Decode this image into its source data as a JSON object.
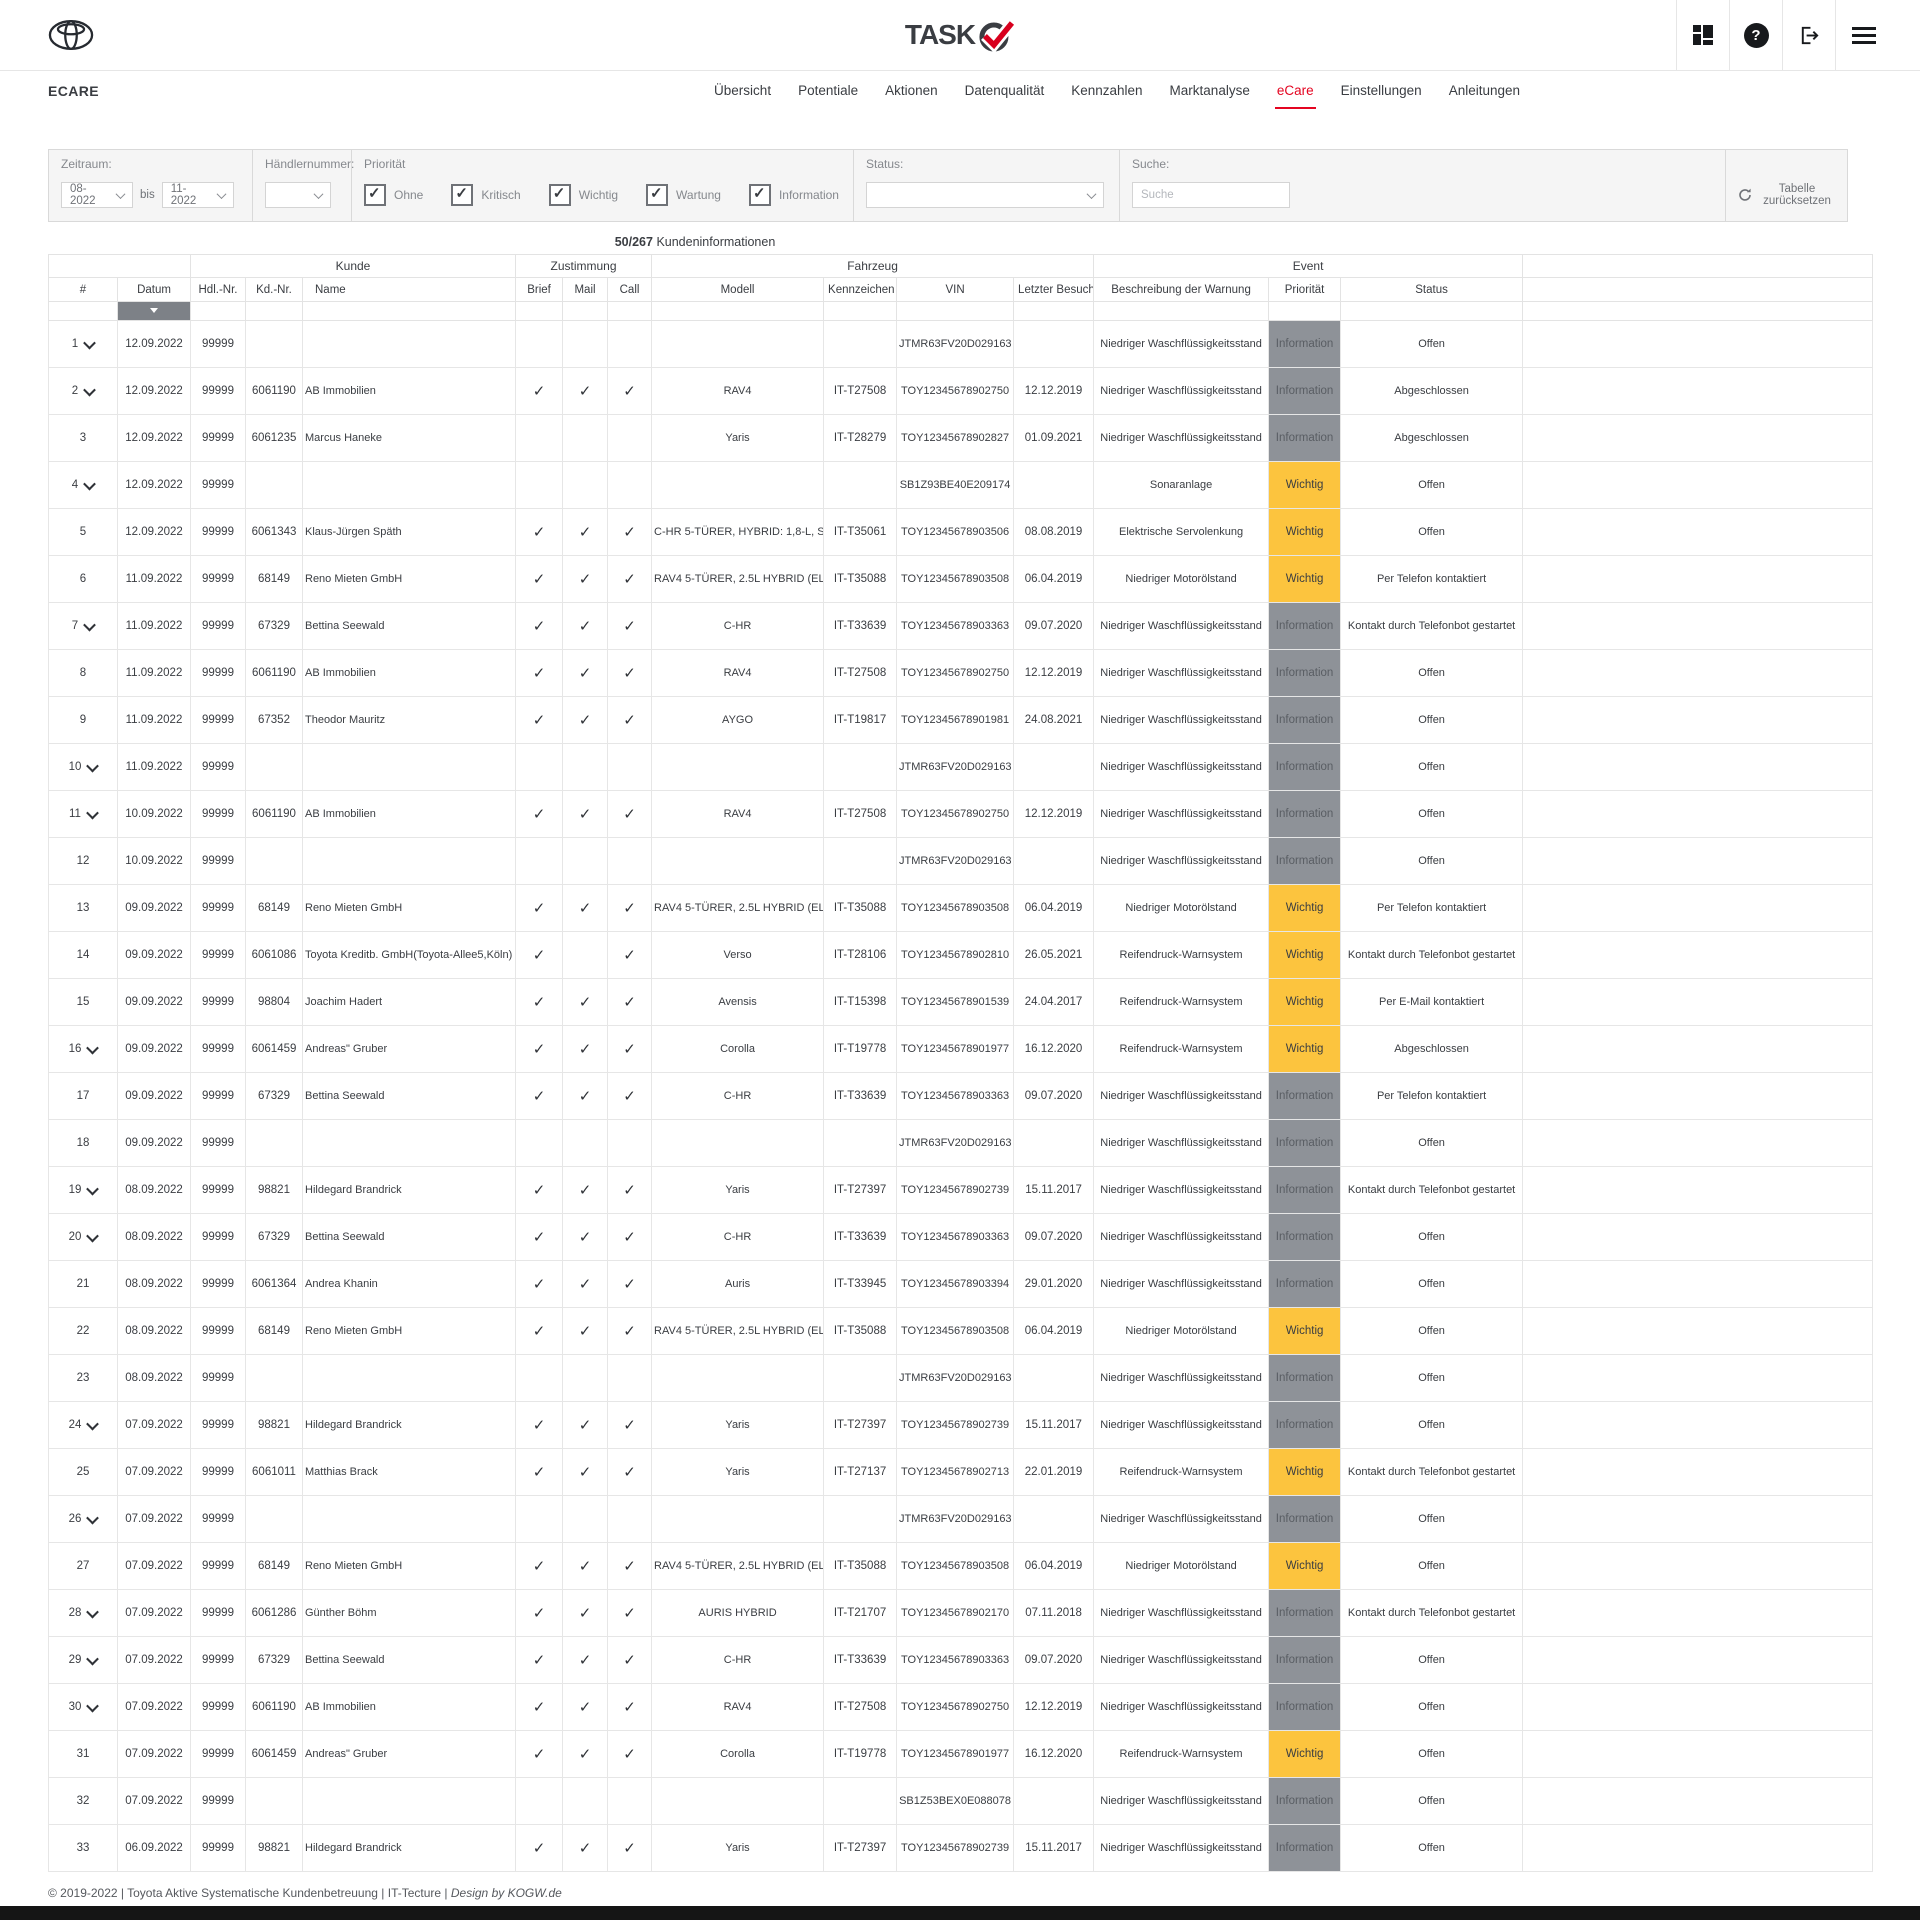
{
  "header": {
    "brand": "TASK",
    "icons": {
      "help_glyph": "?"
    }
  },
  "nav": {
    "app_label": "ECARE",
    "items": [
      "Übersicht",
      "Potentiale",
      "Aktionen",
      "Datenqualität",
      "Kennzahlen",
      "Marktanalyse",
      "eCare",
      "Einstellungen",
      "Anleitungen"
    ],
    "active": "eCare"
  },
  "filters": {
    "zeitraum": {
      "label": "Zeitraum:",
      "from": "08-2022",
      "bis_label": "bis",
      "to": "11-2022"
    },
    "haendler": {
      "label": "Händlernummer:",
      "value": ""
    },
    "prioritaet": {
      "label": "Priorität",
      "options": [
        {
          "label": "Ohne",
          "checked": true
        },
        {
          "label": "Kritisch",
          "checked": true
        },
        {
          "label": "Wichtig",
          "checked": true
        },
        {
          "label": "Wartung",
          "checked": true
        },
        {
          "label": "Information",
          "checked": true
        }
      ]
    },
    "status": {
      "label": "Status:",
      "value": ""
    },
    "suche": {
      "label": "Suche:",
      "placeholder": "Suche",
      "value": ""
    },
    "reset_label": "Tabelle zurücksetzen"
  },
  "summary": {
    "count": "50/267",
    "label": "Kundeninformationen"
  },
  "table": {
    "groups": [
      {
        "label": "",
        "span": 2
      },
      {
        "label": "Kunde",
        "span": 3
      },
      {
        "label": "Zustimmung",
        "span": 3
      },
      {
        "label": "Fahrzeug",
        "span": 4
      },
      {
        "label": "Event",
        "span": 3
      },
      {
        "label": "",
        "span": 1
      }
    ],
    "columns": [
      "#",
      "Datum",
      "Hdl.-Nr.",
      "Kd.-Nr.",
      "Name",
      "Brief",
      "Mail",
      "Call",
      "Modell",
      "Kennzeichen",
      "VIN",
      "Letzter Besuch",
      "Beschreibung der Warnung",
      "Priorität",
      "Status",
      ""
    ],
    "sorted_column": "Datum",
    "check_glyph": "✓",
    "rows": [
      {
        "n": 1,
        "exp": true,
        "datum": "12.09.2022",
        "hdl": "99999",
        "kd": "",
        "name": "",
        "brief": false,
        "mail": false,
        "call": false,
        "modell": "",
        "kz": "",
        "vin": "JTMR63FV20D029163",
        "besuch": "",
        "warnung": "Niedriger Waschflüssigkeitsstand",
        "prio": "Information",
        "status": "Offen"
      },
      {
        "n": 2,
        "exp": true,
        "datum": "12.09.2022",
        "hdl": "99999",
        "kd": "6061190",
        "name": "AB Immobilien",
        "brief": true,
        "mail": true,
        "call": true,
        "modell": "RAV4",
        "kz": "IT-T27508",
        "vin": "TOY12345678902750",
        "besuch": "12.12.2019",
        "warnung": "Niedriger Waschflüssigkeitsstand",
        "prio": "Information",
        "status": "Abgeschlossen"
      },
      {
        "n": 3,
        "exp": false,
        "datum": "12.09.2022",
        "hdl": "99999",
        "kd": "6061235",
        "name": "Marcus Haneke",
        "brief": false,
        "mail": false,
        "call": false,
        "modell": "Yaris",
        "kz": "IT-T28279",
        "vin": "TOY12345678902827",
        "besuch": "01.09.2021",
        "warnung": "Niedriger Waschflüssigkeitsstand",
        "prio": "Information",
        "status": "Abgeschlossen"
      },
      {
        "n": 4,
        "exp": true,
        "datum": "12.09.2022",
        "hdl": "99999",
        "kd": "",
        "name": "",
        "brief": false,
        "mail": false,
        "call": false,
        "modell": "",
        "kz": "",
        "vin": "SB1Z93BE40E209174",
        "besuch": "",
        "warnung": "Sonaranlage",
        "prio": "Wichtig",
        "status": "Offen"
      },
      {
        "n": 5,
        "exp": false,
        "datum": "12.09.2022",
        "hdl": "99999",
        "kd": "6061343",
        "name": "Klaus-Jürgen Späth",
        "brief": true,
        "mail": true,
        "call": true,
        "modell": "C-HR 5-TÜRER, HYBRID: 1,8-L, S",
        "kz": "IT-T35061",
        "vin": "TOY12345678903506",
        "besuch": "08.08.2019",
        "warnung": "Elektrische Servolenkung",
        "prio": "Wichtig",
        "status": "Offen"
      },
      {
        "n": 6,
        "exp": false,
        "datum": "11.09.2022",
        "hdl": "99999",
        "kd": "68149",
        "name": "Reno Mieten GmbH",
        "brief": true,
        "mail": true,
        "call": true,
        "modell": "RAV4 5-TÜRER, 2.5L HYBRID (ELE",
        "kz": "IT-T35088",
        "vin": "TOY12345678903508",
        "besuch": "06.04.2019",
        "warnung": "Niedriger Motorölstand",
        "prio": "Wichtig",
        "status": "Per Telefon kontaktiert"
      },
      {
        "n": 7,
        "exp": true,
        "datum": "11.09.2022",
        "hdl": "99999",
        "kd": "67329",
        "name": "Bettina Seewald",
        "brief": true,
        "mail": true,
        "call": true,
        "modell": "C-HR",
        "kz": "IT-T33639",
        "vin": "TOY12345678903363",
        "besuch": "09.07.2020",
        "warnung": "Niedriger Waschflüssigkeitsstand",
        "prio": "Information",
        "status": "Kontakt durch Telefonbot gestartet"
      },
      {
        "n": 8,
        "exp": false,
        "datum": "11.09.2022",
        "hdl": "99999",
        "kd": "6061190",
        "name": "AB Immobilien",
        "brief": true,
        "mail": true,
        "call": true,
        "modell": "RAV4",
        "kz": "IT-T27508",
        "vin": "TOY12345678902750",
        "besuch": "12.12.2019",
        "warnung": "Niedriger Waschflüssigkeitsstand",
        "prio": "Information",
        "status": "Offen"
      },
      {
        "n": 9,
        "exp": false,
        "datum": "11.09.2022",
        "hdl": "99999",
        "kd": "67352",
        "name": "Theodor Mauritz",
        "brief": true,
        "mail": true,
        "call": true,
        "modell": "AYGO",
        "kz": "IT-T19817",
        "vin": "TOY12345678901981",
        "besuch": "24.08.2021",
        "warnung": "Niedriger Waschflüssigkeitsstand",
        "prio": "Information",
        "status": "Offen"
      },
      {
        "n": 10,
        "exp": true,
        "datum": "11.09.2022",
        "hdl": "99999",
        "kd": "",
        "name": "",
        "brief": false,
        "mail": false,
        "call": false,
        "modell": "",
        "kz": "",
        "vin": "JTMR63FV20D029163",
        "besuch": "",
        "warnung": "Niedriger Waschflüssigkeitsstand",
        "prio": "Information",
        "status": "Offen"
      },
      {
        "n": 11,
        "exp": true,
        "datum": "10.09.2022",
        "hdl": "99999",
        "kd": "6061190",
        "name": "AB Immobilien",
        "brief": true,
        "mail": true,
        "call": true,
        "modell": "RAV4",
        "kz": "IT-T27508",
        "vin": "TOY12345678902750",
        "besuch": "12.12.2019",
        "warnung": "Niedriger Waschflüssigkeitsstand",
        "prio": "Information",
        "status": "Offen"
      },
      {
        "n": 12,
        "exp": false,
        "datum": "10.09.2022",
        "hdl": "99999",
        "kd": "",
        "name": "",
        "brief": false,
        "mail": false,
        "call": false,
        "modell": "",
        "kz": "",
        "vin": "JTMR63FV20D029163",
        "besuch": "",
        "warnung": "Niedriger Waschflüssigkeitsstand",
        "prio": "Information",
        "status": "Offen"
      },
      {
        "n": 13,
        "exp": false,
        "datum": "09.09.2022",
        "hdl": "99999",
        "kd": "68149",
        "name": "Reno Mieten GmbH",
        "brief": true,
        "mail": true,
        "call": true,
        "modell": "RAV4 5-TÜRER, 2.5L HYBRID (ELE",
        "kz": "IT-T35088",
        "vin": "TOY12345678903508",
        "besuch": "06.04.2019",
        "warnung": "Niedriger Motorölstand",
        "prio": "Wichtig",
        "status": "Per Telefon kontaktiert"
      },
      {
        "n": 14,
        "exp": false,
        "datum": "09.09.2022",
        "hdl": "99999",
        "kd": "6061086",
        "name": "Toyota Kreditb. GmbH(Toyota-Allee5,Köln)",
        "brief": true,
        "mail": false,
        "call": true,
        "modell": "Verso",
        "kz": "IT-T28106",
        "vin": "TOY12345678902810",
        "besuch": "26.05.2021",
        "warnung": "Reifendruck-Warnsystem",
        "prio": "Wichtig",
        "status": "Kontakt durch Telefonbot gestartet"
      },
      {
        "n": 15,
        "exp": false,
        "datum": "09.09.2022",
        "hdl": "99999",
        "kd": "98804",
        "name": "Joachim Hadert",
        "brief": true,
        "mail": true,
        "call": true,
        "modell": "Avensis",
        "kz": "IT-T15398",
        "vin": "TOY12345678901539",
        "besuch": "24.04.2017",
        "warnung": "Reifendruck-Warnsystem",
        "prio": "Wichtig",
        "status": "Per E-Mail kontaktiert"
      },
      {
        "n": 16,
        "exp": true,
        "datum": "09.09.2022",
        "hdl": "99999",
        "kd": "6061459",
        "name": "Andreas\" Gruber",
        "brief": true,
        "mail": true,
        "call": true,
        "modell": "Corolla",
        "kz": "IT-T19778",
        "vin": "TOY12345678901977",
        "besuch": "16.12.2020",
        "warnung": "Reifendruck-Warnsystem",
        "prio": "Wichtig",
        "status": "Abgeschlossen"
      },
      {
        "n": 17,
        "exp": false,
        "datum": "09.09.2022",
        "hdl": "99999",
        "kd": "67329",
        "name": "Bettina Seewald",
        "brief": true,
        "mail": true,
        "call": true,
        "modell": "C-HR",
        "kz": "IT-T33639",
        "vin": "TOY12345678903363",
        "besuch": "09.07.2020",
        "warnung": "Niedriger Waschflüssigkeitsstand",
        "prio": "Information",
        "status": "Per Telefon kontaktiert"
      },
      {
        "n": 18,
        "exp": false,
        "datum": "09.09.2022",
        "hdl": "99999",
        "kd": "",
        "name": "",
        "brief": false,
        "mail": false,
        "call": false,
        "modell": "",
        "kz": "",
        "vin": "JTMR63FV20D029163",
        "besuch": "",
        "warnung": "Niedriger Waschflüssigkeitsstand",
        "prio": "Information",
        "status": "Offen"
      },
      {
        "n": 19,
        "exp": true,
        "datum": "08.09.2022",
        "hdl": "99999",
        "kd": "98821",
        "name": "Hildegard Brandrick",
        "brief": true,
        "mail": true,
        "call": true,
        "modell": "Yaris",
        "kz": "IT-T27397",
        "vin": "TOY12345678902739",
        "besuch": "15.11.2017",
        "warnung": "Niedriger Waschflüssigkeitsstand",
        "prio": "Information",
        "status": "Kontakt durch Telefonbot gestartet"
      },
      {
        "n": 20,
        "exp": true,
        "datum": "08.09.2022",
        "hdl": "99999",
        "kd": "67329",
        "name": "Bettina Seewald",
        "brief": true,
        "mail": true,
        "call": true,
        "modell": "C-HR",
        "kz": "IT-T33639",
        "vin": "TOY12345678903363",
        "besuch": "09.07.2020",
        "warnung": "Niedriger Waschflüssigkeitsstand",
        "prio": "Information",
        "status": "Offen"
      },
      {
        "n": 21,
        "exp": false,
        "datum": "08.09.2022",
        "hdl": "99999",
        "kd": "6061364",
        "name": "Andrea Khanin",
        "brief": true,
        "mail": true,
        "call": true,
        "modell": "Auris",
        "kz": "IT-T33945",
        "vin": "TOY12345678903394",
        "besuch": "29.01.2020",
        "warnung": "Niedriger Waschflüssigkeitsstand",
        "prio": "Information",
        "status": "Offen"
      },
      {
        "n": 22,
        "exp": false,
        "datum": "08.09.2022",
        "hdl": "99999",
        "kd": "68149",
        "name": "Reno Mieten GmbH",
        "brief": true,
        "mail": true,
        "call": true,
        "modell": "RAV4 5-TÜRER, 2.5L HYBRID (ELE",
        "kz": "IT-T35088",
        "vin": "TOY12345678903508",
        "besuch": "06.04.2019",
        "warnung": "Niedriger Motorölstand",
        "prio": "Wichtig",
        "status": "Offen"
      },
      {
        "n": 23,
        "exp": false,
        "datum": "08.09.2022",
        "hdl": "99999",
        "kd": "",
        "name": "",
        "brief": false,
        "mail": false,
        "call": false,
        "modell": "",
        "kz": "",
        "vin": "JTMR63FV20D029163",
        "besuch": "",
        "warnung": "Niedriger Waschflüssigkeitsstand",
        "prio": "Information",
        "status": "Offen"
      },
      {
        "n": 24,
        "exp": true,
        "datum": "07.09.2022",
        "hdl": "99999",
        "kd": "98821",
        "name": "Hildegard Brandrick",
        "brief": true,
        "mail": true,
        "call": true,
        "modell": "Yaris",
        "kz": "IT-T27397",
        "vin": "TOY12345678902739",
        "besuch": "15.11.2017",
        "warnung": "Niedriger Waschflüssigkeitsstand",
        "prio": "Information",
        "status": "Offen"
      },
      {
        "n": 25,
        "exp": false,
        "datum": "07.09.2022",
        "hdl": "99999",
        "kd": "6061011",
        "name": "Matthias Brack",
        "brief": true,
        "mail": true,
        "call": true,
        "modell": "Yaris",
        "kz": "IT-T27137",
        "vin": "TOY12345678902713",
        "besuch": "22.01.2019",
        "warnung": "Reifendruck-Warnsystem",
        "prio": "Wichtig",
        "status": "Kontakt durch Telefonbot gestartet"
      },
      {
        "n": 26,
        "exp": true,
        "datum": "07.09.2022",
        "hdl": "99999",
        "kd": "",
        "name": "",
        "brief": false,
        "mail": false,
        "call": false,
        "modell": "",
        "kz": "",
        "vin": "JTMR63FV20D029163",
        "besuch": "",
        "warnung": "Niedriger Waschflüssigkeitsstand",
        "prio": "Information",
        "status": "Offen"
      },
      {
        "n": 27,
        "exp": false,
        "datum": "07.09.2022",
        "hdl": "99999",
        "kd": "68149",
        "name": "Reno Mieten GmbH",
        "brief": true,
        "mail": true,
        "call": true,
        "modell": "RAV4 5-TÜRER, 2.5L HYBRID (ELE",
        "kz": "IT-T35088",
        "vin": "TOY12345678903508",
        "besuch": "06.04.2019",
        "warnung": "Niedriger Motorölstand",
        "prio": "Wichtig",
        "status": "Offen"
      },
      {
        "n": 28,
        "exp": true,
        "datum": "07.09.2022",
        "hdl": "99999",
        "kd": "6061286",
        "name": "Günther Böhm",
        "brief": true,
        "mail": true,
        "call": true,
        "modell": "AURIS HYBRID",
        "kz": "IT-T21707",
        "vin": "TOY12345678902170",
        "besuch": "07.11.2018",
        "warnung": "Niedriger Waschflüssigkeitsstand",
        "prio": "Information",
        "status": "Kontakt durch Telefonbot gestartet"
      },
      {
        "n": 29,
        "exp": true,
        "datum": "07.09.2022",
        "hdl": "99999",
        "kd": "67329",
        "name": "Bettina Seewald",
        "brief": true,
        "mail": true,
        "call": true,
        "modell": "C-HR",
        "kz": "IT-T33639",
        "vin": "TOY12345678903363",
        "besuch": "09.07.2020",
        "warnung": "Niedriger Waschflüssigkeitsstand",
        "prio": "Information",
        "status": "Offen"
      },
      {
        "n": 30,
        "exp": true,
        "datum": "07.09.2022",
        "hdl": "99999",
        "kd": "6061190",
        "name": "AB Immobilien",
        "brief": true,
        "mail": true,
        "call": true,
        "modell": "RAV4",
        "kz": "IT-T27508",
        "vin": "TOY12345678902750",
        "besuch": "12.12.2019",
        "warnung": "Niedriger Waschflüssigkeitsstand",
        "prio": "Information",
        "status": "Offen"
      },
      {
        "n": 31,
        "exp": false,
        "datum": "07.09.2022",
        "hdl": "99999",
        "kd": "6061459",
        "name": "Andreas\" Gruber",
        "brief": true,
        "mail": true,
        "call": true,
        "modell": "Corolla",
        "kz": "IT-T19778",
        "vin": "TOY12345678901977",
        "besuch": "16.12.2020",
        "warnung": "Reifendruck-Warnsystem",
        "prio": "Wichtig",
        "status": "Offen"
      },
      {
        "n": 32,
        "exp": false,
        "datum": "07.09.2022",
        "hdl": "99999",
        "kd": "",
        "name": "",
        "brief": false,
        "mail": false,
        "call": false,
        "modell": "",
        "kz": "",
        "vin": "SB1Z53BEX0E088078",
        "besuch": "",
        "warnung": "Niedriger Waschflüssigkeitsstand",
        "prio": "Information",
        "status": "Offen"
      },
      {
        "n": 33,
        "exp": false,
        "datum": "06.09.2022",
        "hdl": "99999",
        "kd": "98821",
        "name": "Hildegard Brandrick",
        "brief": true,
        "mail": true,
        "call": true,
        "modell": "Yaris",
        "kz": "IT-T27397",
        "vin": "TOY12345678902739",
        "besuch": "15.11.2017",
        "warnung": "Niedriger Waschflüssigkeitsstand",
        "prio": "Information",
        "status": "Offen"
      }
    ]
  },
  "footer": {
    "text": "© 2019-2022 | Toyota Aktive Systematische Kundenbetreuung | IT-Tecture | ",
    "design": "Design by KOGW.de"
  },
  "colors": {
    "accent_red": "#e40521",
    "priority_wichtig_bg": "#fcc43e",
    "priority_information_bg": "#8e9298",
    "sort_cell_bg": "#7d8187"
  }
}
